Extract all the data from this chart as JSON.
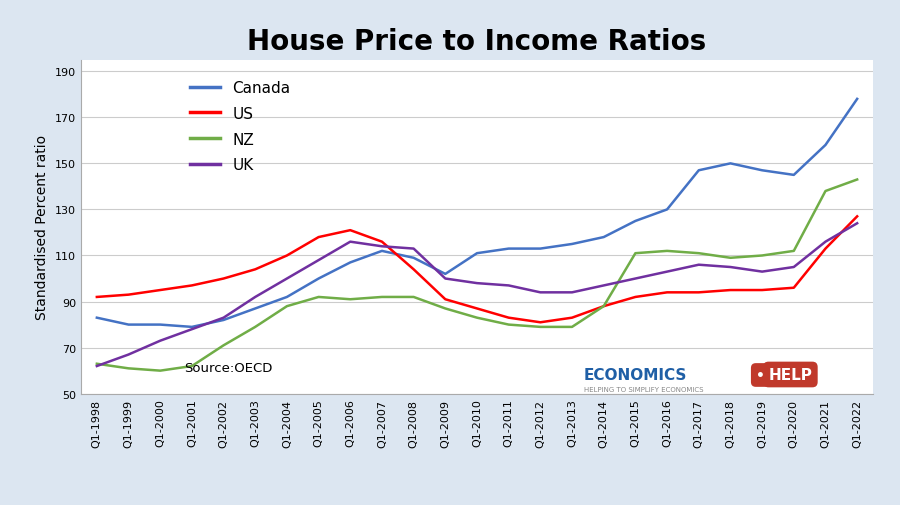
{
  "title": "House Price to Income Ratios",
  "ylabel": "Standardised Percent ratio",
  "source": "Source:OECD",
  "ylim": [
    50,
    195
  ],
  "yticks": [
    50,
    70,
    90,
    110,
    130,
    150,
    170,
    190
  ],
  "background_color": "#dce6f1",
  "plot_bg_color": "#ffffff",
  "years": [
    "Q1-1998",
    "Q1-1999",
    "Q1-2000",
    "Q1-2001",
    "Q1-2002",
    "Q1-2003",
    "Q1-2004",
    "Q1-2005",
    "Q1-2006",
    "Q1-2007",
    "Q1-2008",
    "Q1-2009",
    "Q1-2010",
    "Q1-2011",
    "Q1-2012",
    "Q1-2013",
    "Q1-2014",
    "Q1-2015",
    "Q1-2016",
    "Q1-2017",
    "Q1-2018",
    "Q1-2019",
    "Q1-2020",
    "Q1-2021",
    "Q1-2022"
  ],
  "canada": [
    83,
    80,
    80,
    79,
    82,
    87,
    92,
    100,
    107,
    112,
    109,
    102,
    111,
    113,
    113,
    115,
    118,
    125,
    130,
    147,
    150,
    147,
    145,
    158,
    178
  ],
  "us": [
    92,
    93,
    95,
    97,
    100,
    104,
    110,
    118,
    121,
    116,
    104,
    91,
    87,
    83,
    81,
    83,
    88,
    92,
    94,
    94,
    95,
    95,
    96,
    113,
    127
  ],
  "nz": [
    63,
    61,
    60,
    62,
    71,
    79,
    88,
    92,
    91,
    92,
    92,
    87,
    83,
    80,
    79,
    79,
    88,
    111,
    112,
    111,
    109,
    110,
    112,
    138,
    143
  ],
  "uk": [
    62,
    67,
    73,
    78,
    83,
    92,
    100,
    108,
    116,
    114,
    113,
    100,
    98,
    97,
    94,
    94,
    97,
    100,
    103,
    106,
    105,
    103,
    105,
    116,
    124
  ],
  "canada_color": "#4472C4",
  "us_color": "#FF0000",
  "nz_color": "#70AD47",
  "uk_color": "#7030A0",
  "line_width": 1.8,
  "title_fontsize": 20,
  "label_fontsize": 10,
  "tick_fontsize": 8,
  "legend_fontsize": 11,
  "econ_text_color": "#1F5FA6",
  "econ_help_bg": "#C0392B",
  "econ_subtitle_color": "#888888"
}
